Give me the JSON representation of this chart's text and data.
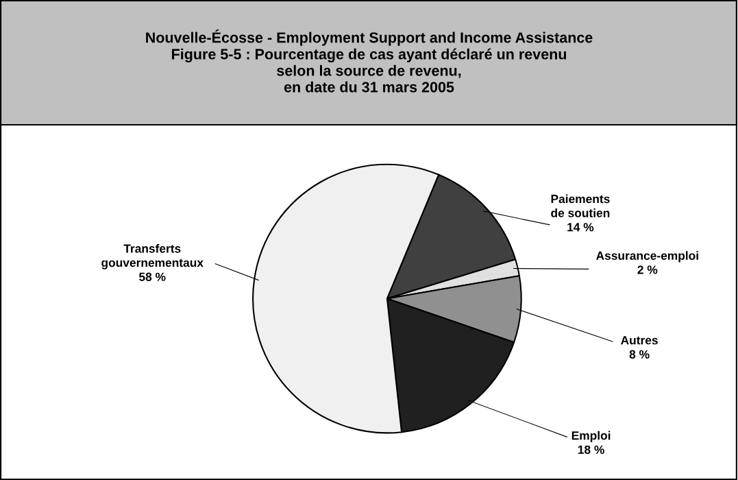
{
  "chart_data": {
    "type": "pie",
    "title": "Nouvelle-Écosse - Employment Support and Income Assistance\nFigure 5-5 : Pourcentage de cas ayant déclaré un revenu\nselon la source de revenu,\nen date du 31 mars 2005",
    "categories": [
      "Paiements\nde soutien",
      "Assurance-emploi",
      "Autres",
      "Emploi",
      "Transferts\ngouvernementaux"
    ],
    "values": [
      14,
      2,
      8,
      18,
      58
    ],
    "value_labels": [
      "14 %",
      "2 %",
      "8 %",
      "18 %",
      "58 %"
    ],
    "colors": [
      "#404040",
      "#e0e0e0",
      "#909090",
      "#202020",
      "#f0f0f0"
    ],
    "legend": false
  }
}
